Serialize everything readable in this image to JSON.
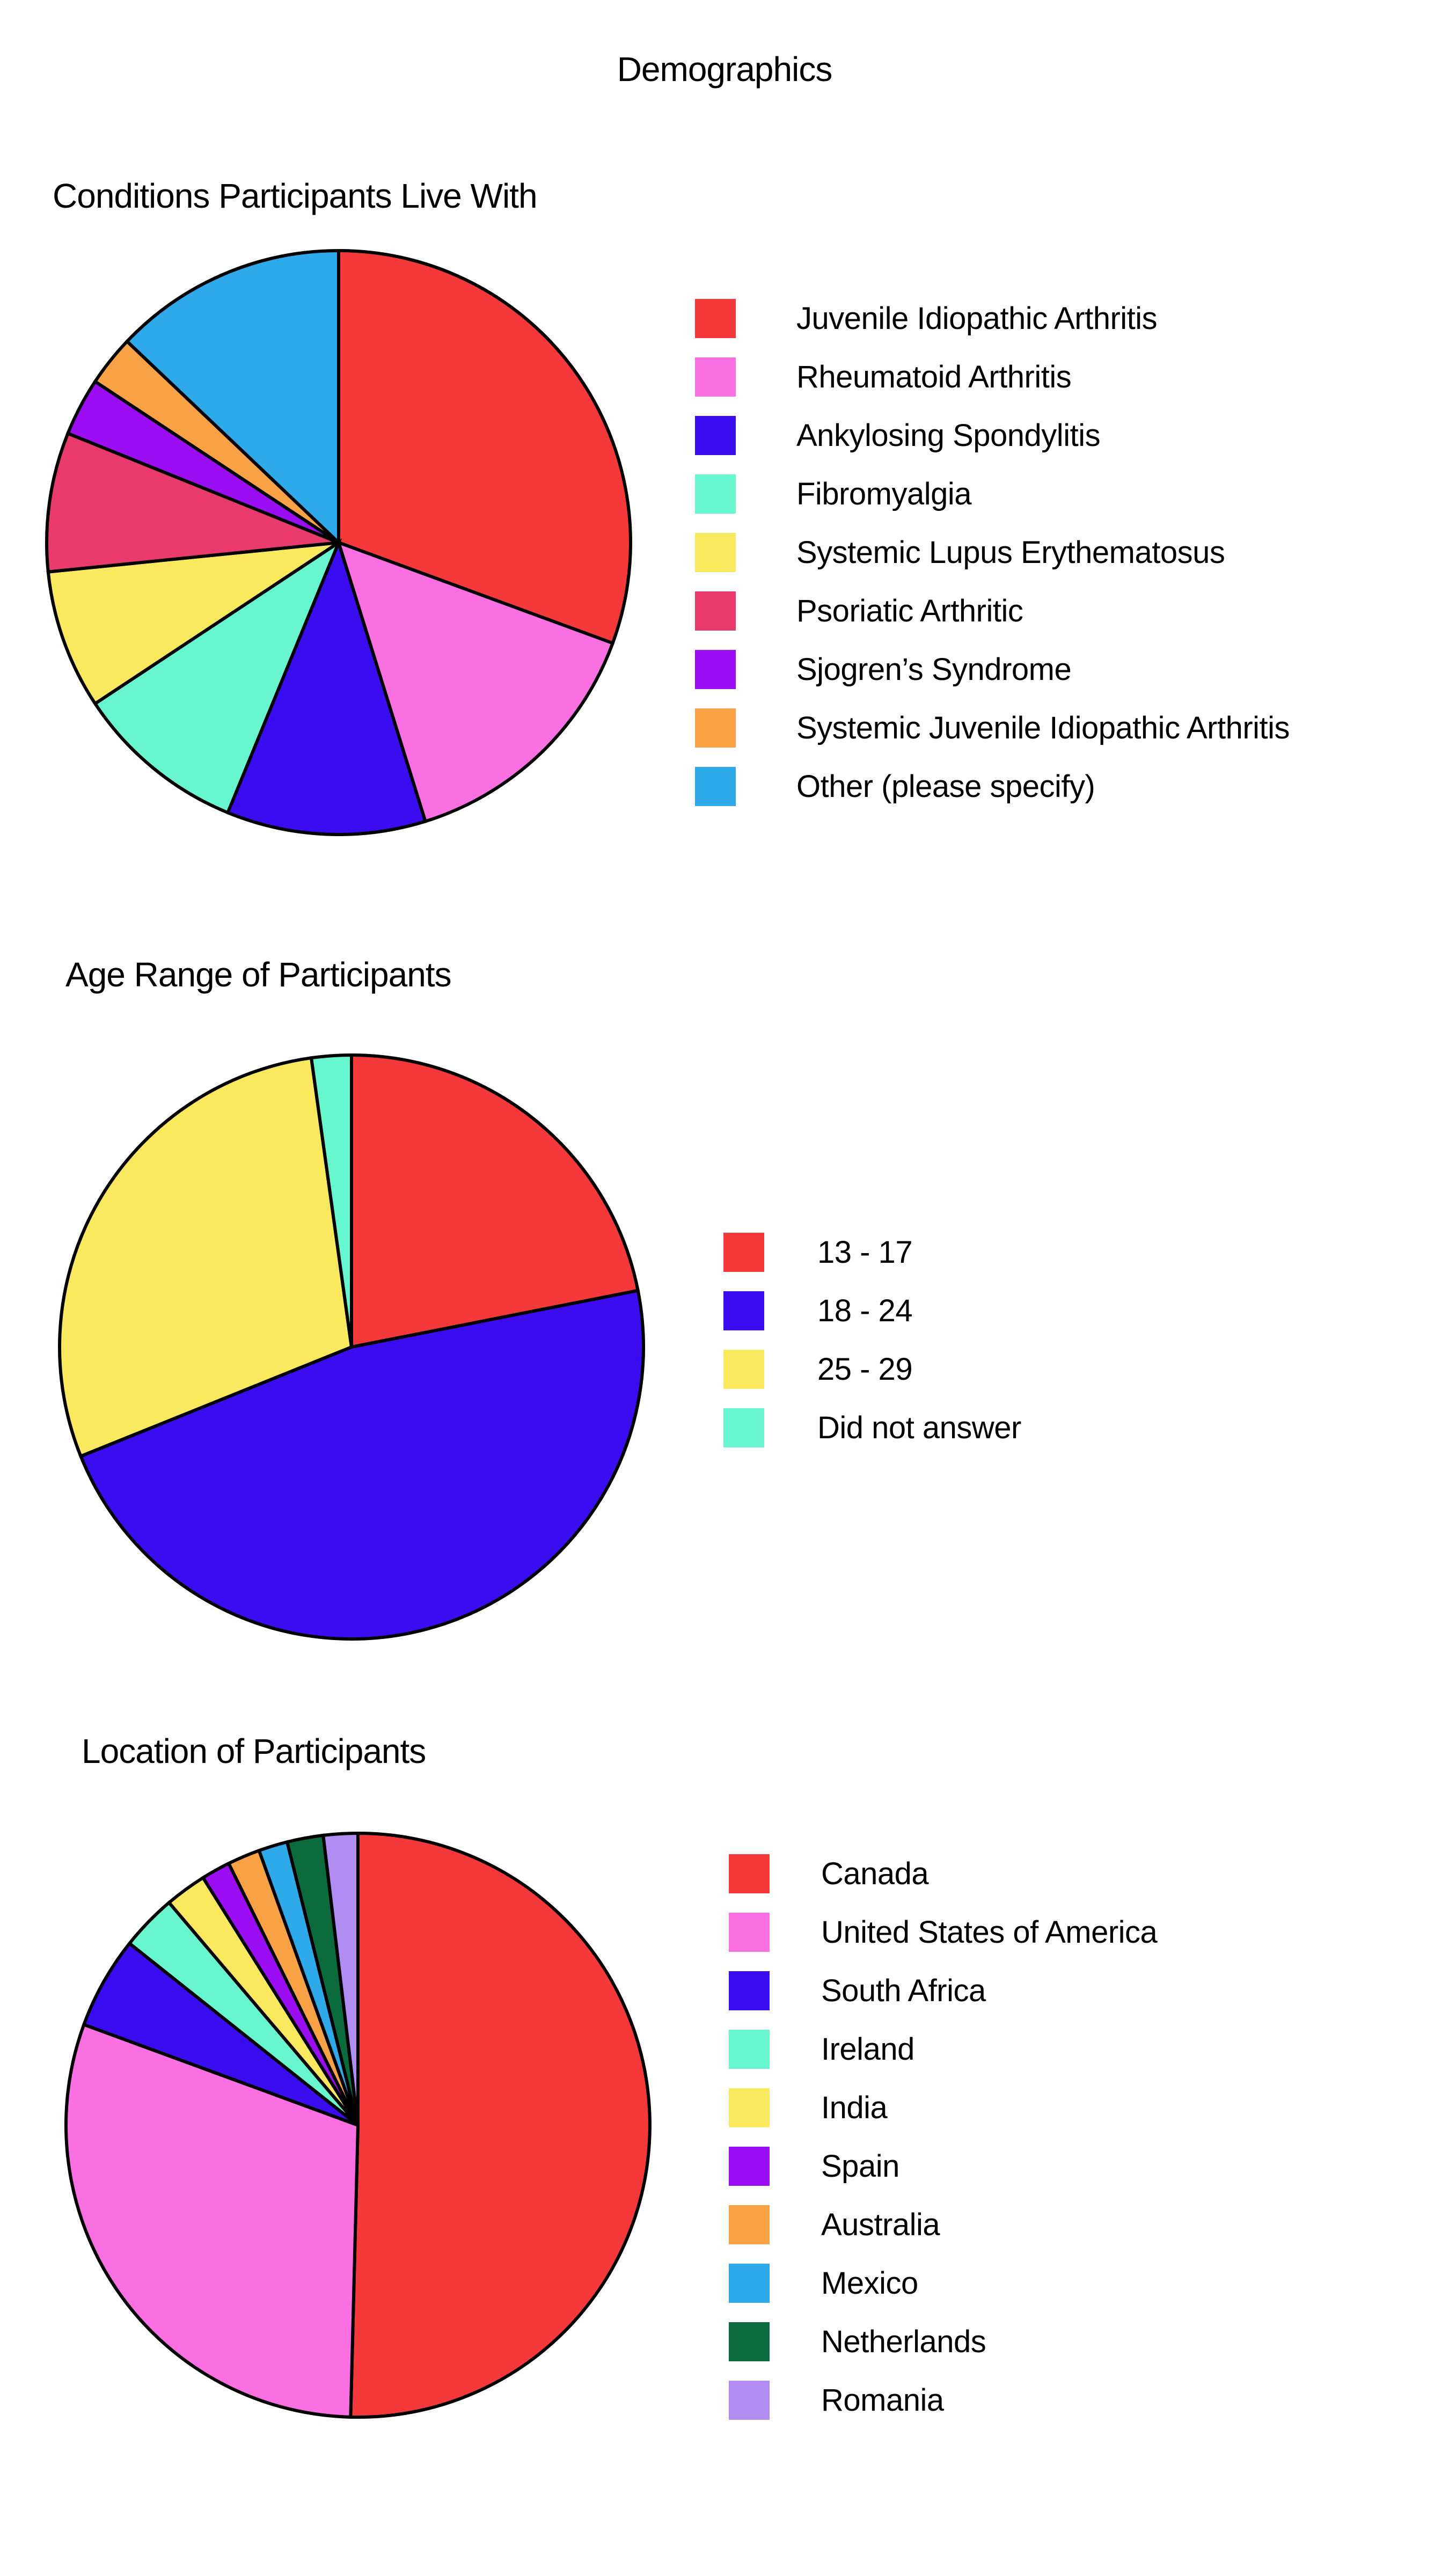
{
  "page": {
    "title": "Demographics",
    "background_color": "#FFFFFF",
    "text_color": "#000000",
    "slice_outline_color": "#000000"
  },
  "chart_data": [
    {
      "type": "pie",
      "title": "Conditions Participants Live With",
      "legend_position": "right",
      "start_angle_deg": 0,
      "direction": "clockwise",
      "slices": [
        {
          "label": "Juvenile Idiopathic Arthritis",
          "value_pct": 30.6,
          "color": "#F5393B"
        },
        {
          "label": "Rheumatoid Arthritis",
          "value_pct": 14.6,
          "color": "#FA70E2"
        },
        {
          "label": "Ankylosing Spondylitis",
          "value_pct": 11.0,
          "color": "#3A0CF0"
        },
        {
          "label": "Fibromyalgia",
          "value_pct": 9.5,
          "color": "#68F6CE"
        },
        {
          "label": "Systemic Lupus Erythematosus",
          "value_pct": 7.7,
          "color": "#FAE95E"
        },
        {
          "label": "Psoriatic Arthritic",
          "value_pct": 7.7,
          "color": "#E93A6E"
        },
        {
          "label": "Sjogren’s Syndrome",
          "value_pct": 3.2,
          "color": "#9B0DF2"
        },
        {
          "label": "Systemic Juvenile Idiopathic Arthritis",
          "value_pct": 2.8,
          "color": "#F9A245"
        },
        {
          "label": "Other (please specify)",
          "value_pct": 12.9,
          "color": "#2EA9E9"
        }
      ]
    },
    {
      "type": "pie",
      "title": "Age Range of Participants",
      "legend_position": "right",
      "start_angle_deg": 0,
      "direction": "clockwise",
      "slices": [
        {
          "label": "13 - 17",
          "value_pct": 21.9,
          "color": "#F5393B"
        },
        {
          "label": "18 - 24",
          "value_pct": 47.0,
          "color": "#3A0CF0"
        },
        {
          "label": "25 - 29",
          "value_pct": 28.9,
          "color": "#FAE95E"
        },
        {
          "label": "Did not answer",
          "value_pct": 2.2,
          "color": "#68F6CE"
        }
      ]
    },
    {
      "type": "pie",
      "title": "Location of Participants",
      "legend_position": "right",
      "start_angle_deg": 0,
      "direction": "clockwise",
      "slices": [
        {
          "label": "Canada",
          "value_pct": 50.4,
          "color": "#F5393B"
        },
        {
          "label": "United States of America",
          "value_pct": 30.2,
          "color": "#FA70E2"
        },
        {
          "label": "South Africa",
          "value_pct": 5.1,
          "color": "#3A0CF0"
        },
        {
          "label": "Ireland",
          "value_pct": 3.1,
          "color": "#68F6CE"
        },
        {
          "label": "India",
          "value_pct": 2.3,
          "color": "#FAE95E"
        },
        {
          "label": "Spain",
          "value_pct": 1.6,
          "color": "#9B0DF2"
        },
        {
          "label": "Australia",
          "value_pct": 1.8,
          "color": "#F9A245"
        },
        {
          "label": "Mexico",
          "value_pct": 1.6,
          "color": "#2EA9E9"
        },
        {
          "label": "Netherlands",
          "value_pct": 2.0,
          "color": "#0B6B3C"
        },
        {
          "label": "Romania",
          "value_pct": 1.9,
          "color": "#B18CF2"
        }
      ]
    }
  ]
}
